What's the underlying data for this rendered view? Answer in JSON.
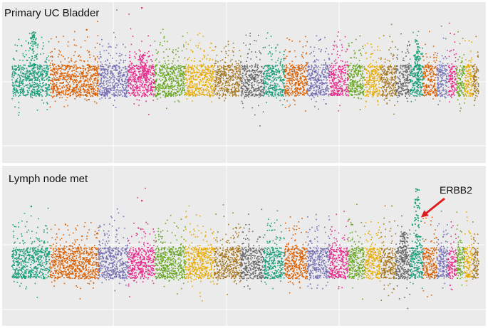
{
  "chart_data": [
    {
      "type": "scatter",
      "subtype": "manhattan",
      "title": "Primary UC Bladder",
      "xlabel": "",
      "ylabel": "",
      "grid": true,
      "legend": "none",
      "chromosome_count": 24,
      "baseline_level": 0.5,
      "chromosome_colors": [
        "#1a9e77",
        "#d95f02",
        "#d95f02",
        "#7570b3",
        "#e7298a",
        "#66a61e",
        "#e6ab02",
        "#a6761d",
        "#666666",
        "#1a9e77",
        "#d95f02",
        "#7570b3",
        "#e7298a",
        "#66a61e",
        "#e6ab02",
        "#a6761d",
        "#666666",
        "#1a9e77",
        "#d95f02",
        "#7570b3",
        "#e7298a",
        "#66a61e",
        "#e6ab02",
        "#a6761d"
      ],
      "peaks": [
        {
          "chromosome": 1,
          "level": 0.84
        },
        {
          "chromosome": 18,
          "level": 0.78
        },
        {
          "chromosome": 5,
          "level": 0.68
        }
      ],
      "outliers": [
        {
          "chromosome": 5,
          "level": 1.0
        },
        {
          "chromosome": 3,
          "level": 0.85
        }
      ]
    },
    {
      "type": "scatter",
      "subtype": "manhattan",
      "title": "Lymph node met",
      "xlabel": "",
      "ylabel": "",
      "grid": true,
      "legend": "none",
      "chromosome_count": 24,
      "baseline_level": 0.38,
      "chromosome_colors": [
        "#1a9e77",
        "#d95f02",
        "#d95f02",
        "#7570b3",
        "#e7298a",
        "#66a61e",
        "#e6ab02",
        "#a6761d",
        "#666666",
        "#1a9e77",
        "#d95f02",
        "#7570b3",
        "#e7298a",
        "#66a61e",
        "#e6ab02",
        "#a6761d",
        "#666666",
        "#1a9e77",
        "#d95f02",
        "#7570b3",
        "#e7298a",
        "#66a61e",
        "#e6ab02",
        "#a6761d"
      ],
      "peaks": [
        {
          "chromosome": 18,
          "level": 0.92
        },
        {
          "chromosome": 17,
          "level": 0.6
        }
      ],
      "outliers": [
        {
          "chromosome": 5,
          "level": 0.82
        },
        {
          "chromosome": 1,
          "level": 0.78
        }
      ],
      "annotations": [
        {
          "text": "ERBB2",
          "chromosome": 18,
          "arrow_color": "#e11b1b"
        }
      ]
    }
  ]
}
